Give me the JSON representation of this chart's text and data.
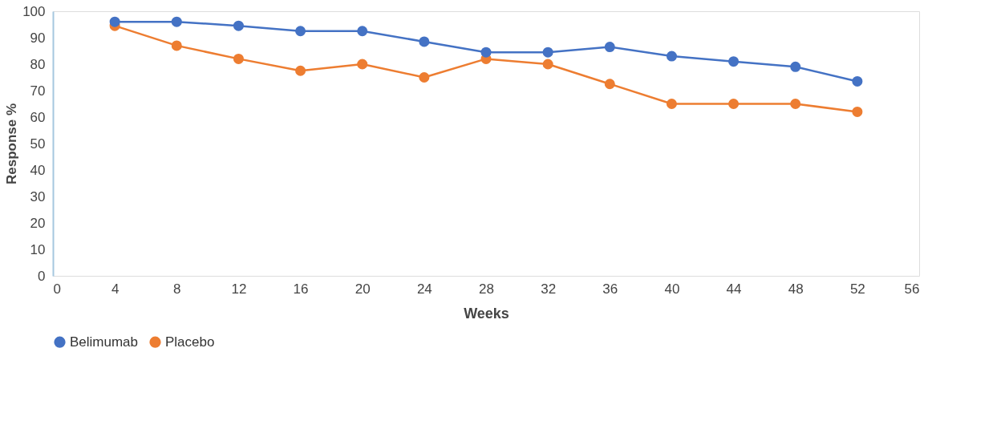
{
  "chart_data": {
    "type": "line",
    "xlabel": "Weeks",
    "ylabel": "Response %",
    "x": [
      4,
      8,
      12,
      16,
      20,
      24,
      28,
      32,
      36,
      40,
      44,
      48,
      52
    ],
    "series": [
      {
        "name": "Belimumab",
        "color": "#4472c4",
        "values": [
          96,
          96,
          94.5,
          92.5,
          92.5,
          88.5,
          84.5,
          84.5,
          86.5,
          83,
          81,
          79,
          73.5
        ]
      },
      {
        "name": "Placebo",
        "color": "#ed7d31",
        "values": [
          94.5,
          87,
          82,
          77.5,
          80,
          75,
          82,
          80,
          72.5,
          65,
          65,
          65,
          62
        ]
      }
    ],
    "xlim": [
      0,
      56
    ],
    "xticks": [
      0,
      4,
      8,
      12,
      16,
      20,
      24,
      28,
      32,
      36,
      40,
      44,
      48,
      52,
      56
    ],
    "ylim": [
      0,
      100
    ],
    "yticks": [
      0,
      10,
      20,
      30,
      40,
      50,
      60,
      70,
      80,
      90,
      100
    ],
    "grid": false,
    "legend": "bottom",
    "marker": "circle",
    "line_style": "solid"
  }
}
